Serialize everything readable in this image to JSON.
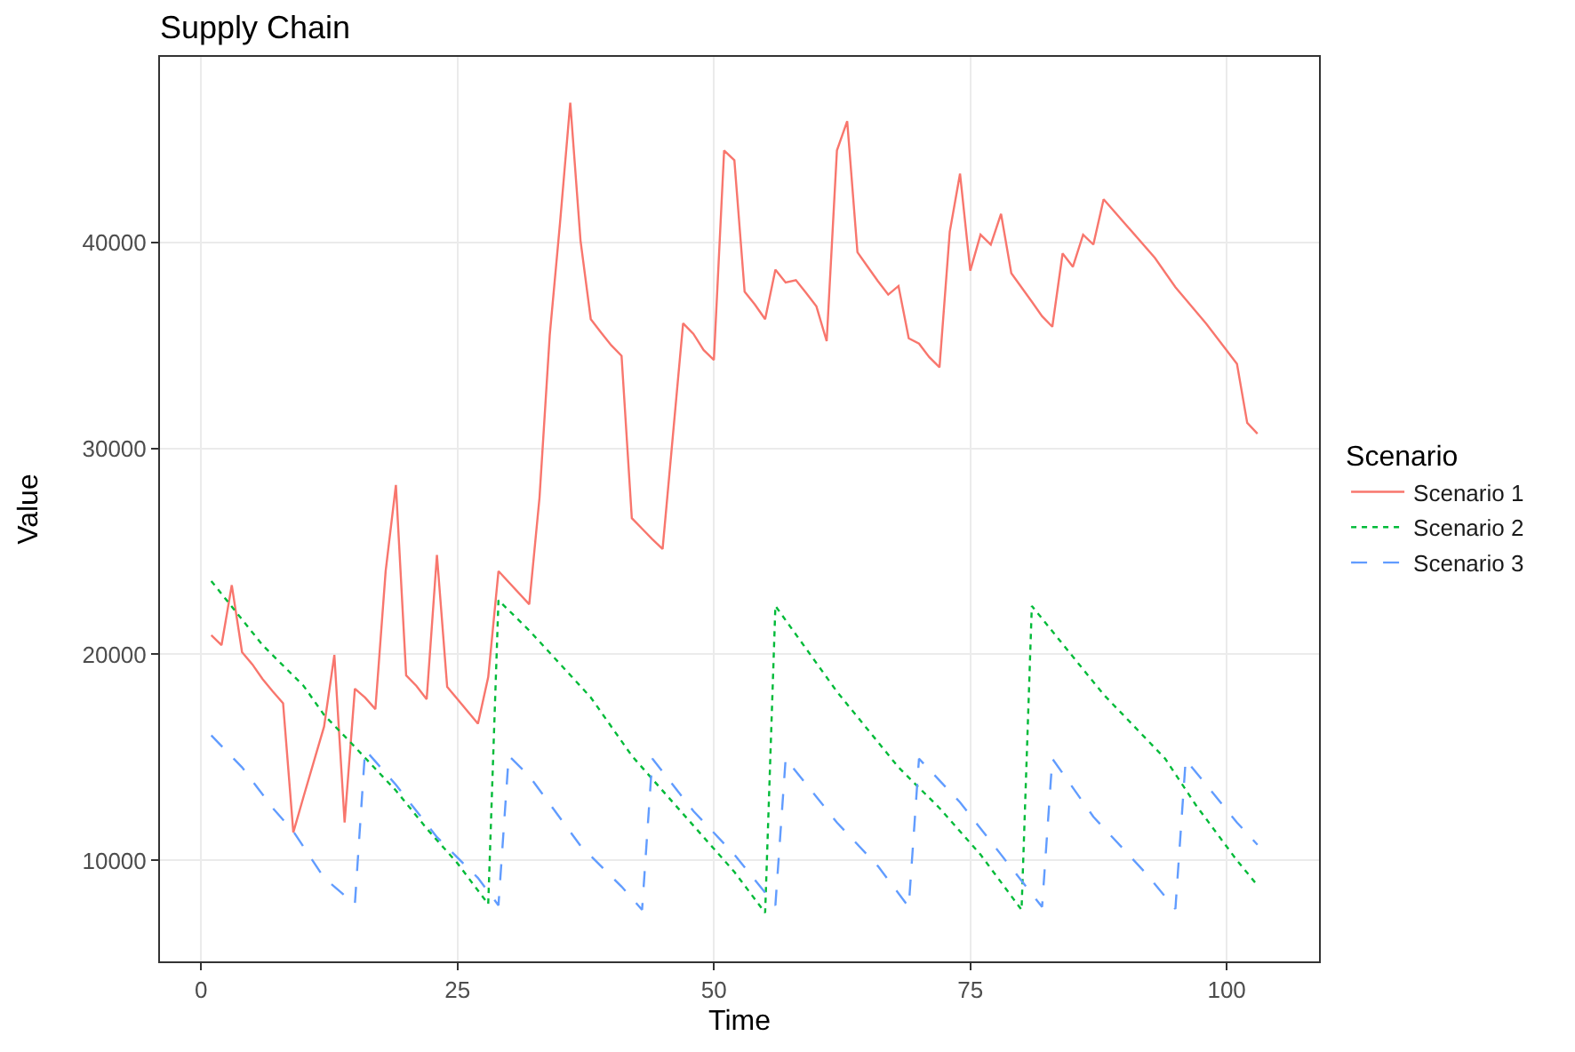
{
  "chart_data": {
    "type": "line",
    "title": "Supply Chain",
    "xlabel": "Time",
    "ylabel": "Value",
    "legend_title": "Scenario",
    "legend": "right",
    "grid": true,
    "xlim": [
      -4,
      109
    ],
    "xticks": [
      0,
      25,
      50,
      75,
      100
    ],
    "ylim": [
      5100,
      49000
    ],
    "yticks": [
      10000,
      20000,
      30000,
      40000
    ],
    "series": [
      {
        "name": "Scenario 1",
        "color": "#f8766d",
        "line_style": "solid",
        "x": [
          1,
          2,
          3,
          4,
          5,
          6,
          7,
          8,
          9,
          10,
          12,
          13,
          14,
          15,
          16,
          17,
          18,
          19,
          20,
          21,
          22,
          23,
          24,
          27,
          28,
          29,
          32,
          33,
          34,
          35,
          36,
          37,
          38,
          39,
          40,
          41,
          42,
          43,
          44,
          45,
          47,
          48,
          49,
          50,
          51,
          52,
          53,
          54,
          55,
          56,
          57,
          58,
          59,
          60,
          61,
          62,
          63,
          64,
          65,
          66,
          67,
          68,
          69,
          70,
          71,
          72,
          73,
          74,
          75,
          76,
          77,
          78,
          79,
          81,
          82,
          83,
          84,
          85,
          86,
          87,
          88,
          93,
          95,
          98,
          101,
          102,
          103
        ],
        "values": [
          20930,
          20450,
          23360,
          20110,
          19520,
          18800,
          18200,
          17630,
          11360,
          13100,
          16500,
          19970,
          11840,
          18330,
          17900,
          17340,
          24040,
          28220,
          18980,
          18470,
          17820,
          24830,
          18420,
          16640,
          18900,
          24040,
          22430,
          27600,
          35500,
          40930,
          46780,
          40080,
          36270,
          35620,
          35000,
          34490,
          26610,
          26100,
          25590,
          25110,
          36070,
          35560,
          34770,
          34290,
          44460,
          43980,
          37600,
          36980,
          36270,
          38670,
          38050,
          38160,
          37540,
          36890,
          35200,
          44460,
          45880,
          39520,
          38810,
          38110,
          37460,
          37880,
          35340,
          35080,
          34430,
          33930,
          40510,
          43330,
          38620,
          40370,
          39890,
          41380,
          38500,
          37120,
          36410,
          35900,
          39460,
          38810,
          40370,
          39890,
          42090,
          39240,
          37820,
          36050,
          34100,
          31240,
          30710
        ]
      },
      {
        "name": "Scenario 2",
        "color": "#00ba38",
        "line_style": "dotted",
        "x": [
          1,
          6,
          10,
          12,
          15,
          19,
          22,
          25,
          28,
          29,
          32,
          38,
          42,
          49,
          52,
          55,
          56,
          62,
          68,
          72,
          76,
          80,
          81,
          85,
          88,
          94,
          97,
          101,
          103
        ],
        "values": [
          23560,
          20450,
          18470,
          17060,
          15510,
          13390,
          11550,
          9860,
          7880,
          22630,
          21160,
          17910,
          15080,
          11130,
          9440,
          7460,
          22350,
          18190,
          14520,
          12540,
          10280,
          7600,
          22350,
          19890,
          18050,
          14940,
          12680,
          10000,
          8790
        ]
      },
      {
        "name": "Scenario 3",
        "color": "#619cff",
        "line_style": "dashed",
        "x": [
          1,
          4,
          7,
          9,
          12,
          15,
          16,
          19,
          23,
          27,
          29,
          30,
          32,
          37,
          41,
          43,
          44,
          48,
          52,
          56,
          57,
          62,
          66,
          69,
          70,
          74,
          78,
          82,
          83,
          87,
          92,
          95,
          96,
          101,
          103
        ],
        "values": [
          16070,
          14520,
          12540,
          11410,
          9150,
          7880,
          15370,
          13670,
          11130,
          9150,
          7820,
          15080,
          14100,
          10710,
          8730,
          7600,
          14940,
          12400,
          10280,
          7820,
          14940,
          11840,
          9720,
          7740,
          14940,
          12820,
          10280,
          7740,
          14940,
          12120,
          9440,
          7650,
          14890,
          11840,
          10760
        ]
      }
    ]
  }
}
